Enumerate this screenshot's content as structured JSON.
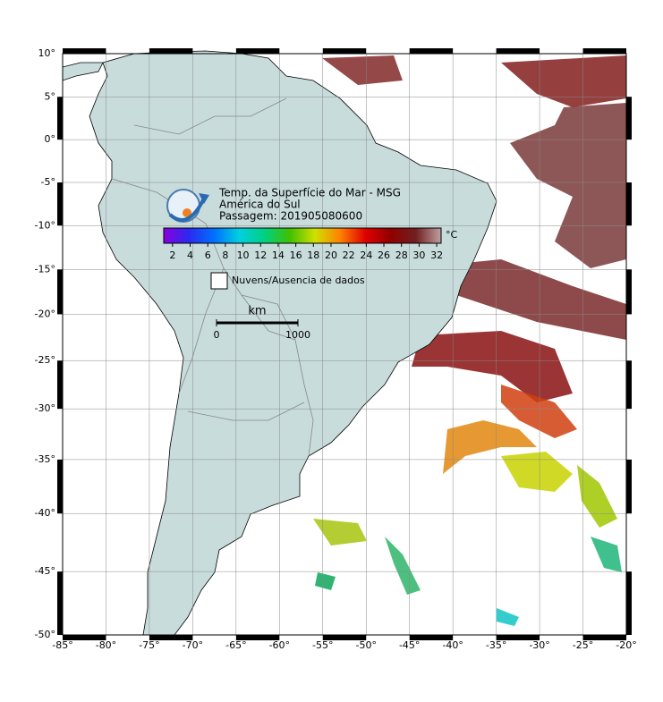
{
  "map": {
    "title": [
      "Temp. da Superfície do Mar - MSG",
      "América do Sul",
      "Passagem: 201905080600"
    ],
    "projection": "mercator",
    "lonlim": [
      -85,
      -20
    ],
    "latlim": [
      -50,
      10
    ],
    "grid": true,
    "lonticks": [
      {
        "value": -85,
        "label": "-85°"
      },
      {
        "value": -80,
        "label": "-80°"
      },
      {
        "value": -75,
        "label": "-75°"
      },
      {
        "value": -70,
        "label": "-70°"
      },
      {
        "value": -65,
        "label": "-65°"
      },
      {
        "value": -60,
        "label": "-60°"
      },
      {
        "value": -55,
        "label": "-55°"
      },
      {
        "value": -50,
        "label": "-50°"
      },
      {
        "value": -45,
        "label": "-45°"
      },
      {
        "value": -40,
        "label": "-40°"
      },
      {
        "value": -35,
        "label": "-35°"
      },
      {
        "value": -30,
        "label": "-30°"
      },
      {
        "value": -25,
        "label": "-25°"
      },
      {
        "value": -20,
        "label": "-20°"
      }
    ],
    "latticks": [
      {
        "value": 10,
        "label": "10°"
      },
      {
        "value": 5,
        "label": "5°"
      },
      {
        "value": 0,
        "label": "0°"
      },
      {
        "value": -5,
        "label": "-5°"
      },
      {
        "value": -10,
        "label": "-10°"
      },
      {
        "value": -15,
        "label": "-15°"
      },
      {
        "value": -20,
        "label": "-20°"
      },
      {
        "value": -25,
        "label": "-25°"
      },
      {
        "value": -30,
        "label": "-30°"
      },
      {
        "value": -35,
        "label": "-35°"
      },
      {
        "value": -40,
        "label": "-40°"
      },
      {
        "value": -45,
        "label": "-45°"
      },
      {
        "value": -50,
        "label": "-50°"
      }
    ],
    "colorbar": {
      "lim": [
        1,
        32.5
      ],
      "ticks": [
        2,
        4,
        6,
        8,
        10,
        12,
        14,
        16,
        18,
        20,
        22,
        24,
        26,
        28,
        30,
        32
      ],
      "unit": "°C",
      "colors": [
        "#8a00e0",
        "#2a2af0",
        "#0070ff",
        "#00d0e0",
        "#00d080",
        "#40c000",
        "#d0e000",
        "#ff8000",
        "#e00000",
        "#900000",
        "#702020",
        "#c0a0a0"
      ]
    },
    "legend": "Nuvens/Ausencia de dados",
    "scale_bar": {
      "unit": "km",
      "ticks": [
        0,
        1000
      ]
    }
  }
}
